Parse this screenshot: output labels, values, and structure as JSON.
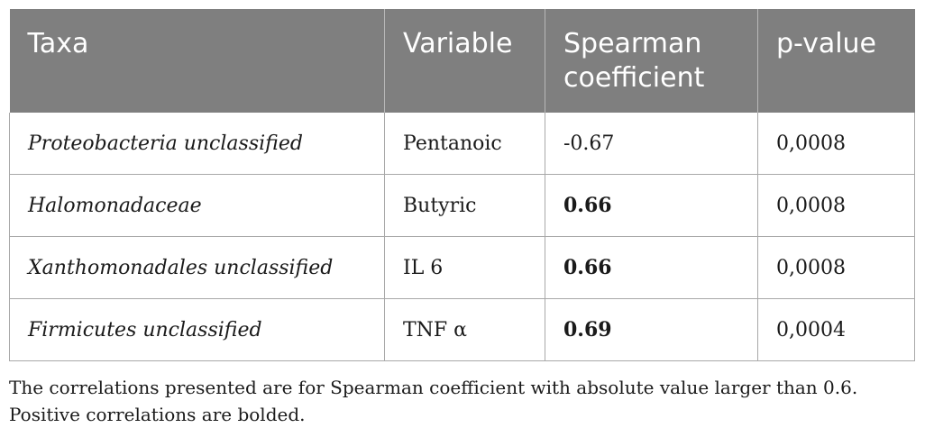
{
  "table": {
    "headers": [
      "Taxa",
      "Variable",
      "Spearman coefficient",
      "p-value"
    ],
    "rows": [
      {
        "taxa": "Proteobacteria unclassified",
        "variable": "Pentanoic",
        "coefficient": "-0.67",
        "p_value": "0,0008",
        "positive": false
      },
      {
        "taxa": "Halomonadaceae",
        "variable": "Butyric",
        "coefficient": "0.66",
        "p_value": "0,0008",
        "positive": true
      },
      {
        "taxa": "Xanthomonadales unclassified",
        "variable": "IL 6",
        "coefficient": "0.66",
        "p_value": "0,0008",
        "positive": true
      },
      {
        "taxa": "Firmicutes unclassified",
        "variable": "TNF α",
        "coefficient": "0.69",
        "p_value": "0,0004",
        "positive": true
      }
    ]
  },
  "footnote": {
    "line1": "The correlations presented are for Spearman coefficient with absolute value larger than 0.6.",
    "line2": "Positive correlations are bolded."
  },
  "colors": {
    "header_bg": "#7f7f7f",
    "header_text": "#ffffff",
    "border": "#a8a8a8"
  }
}
